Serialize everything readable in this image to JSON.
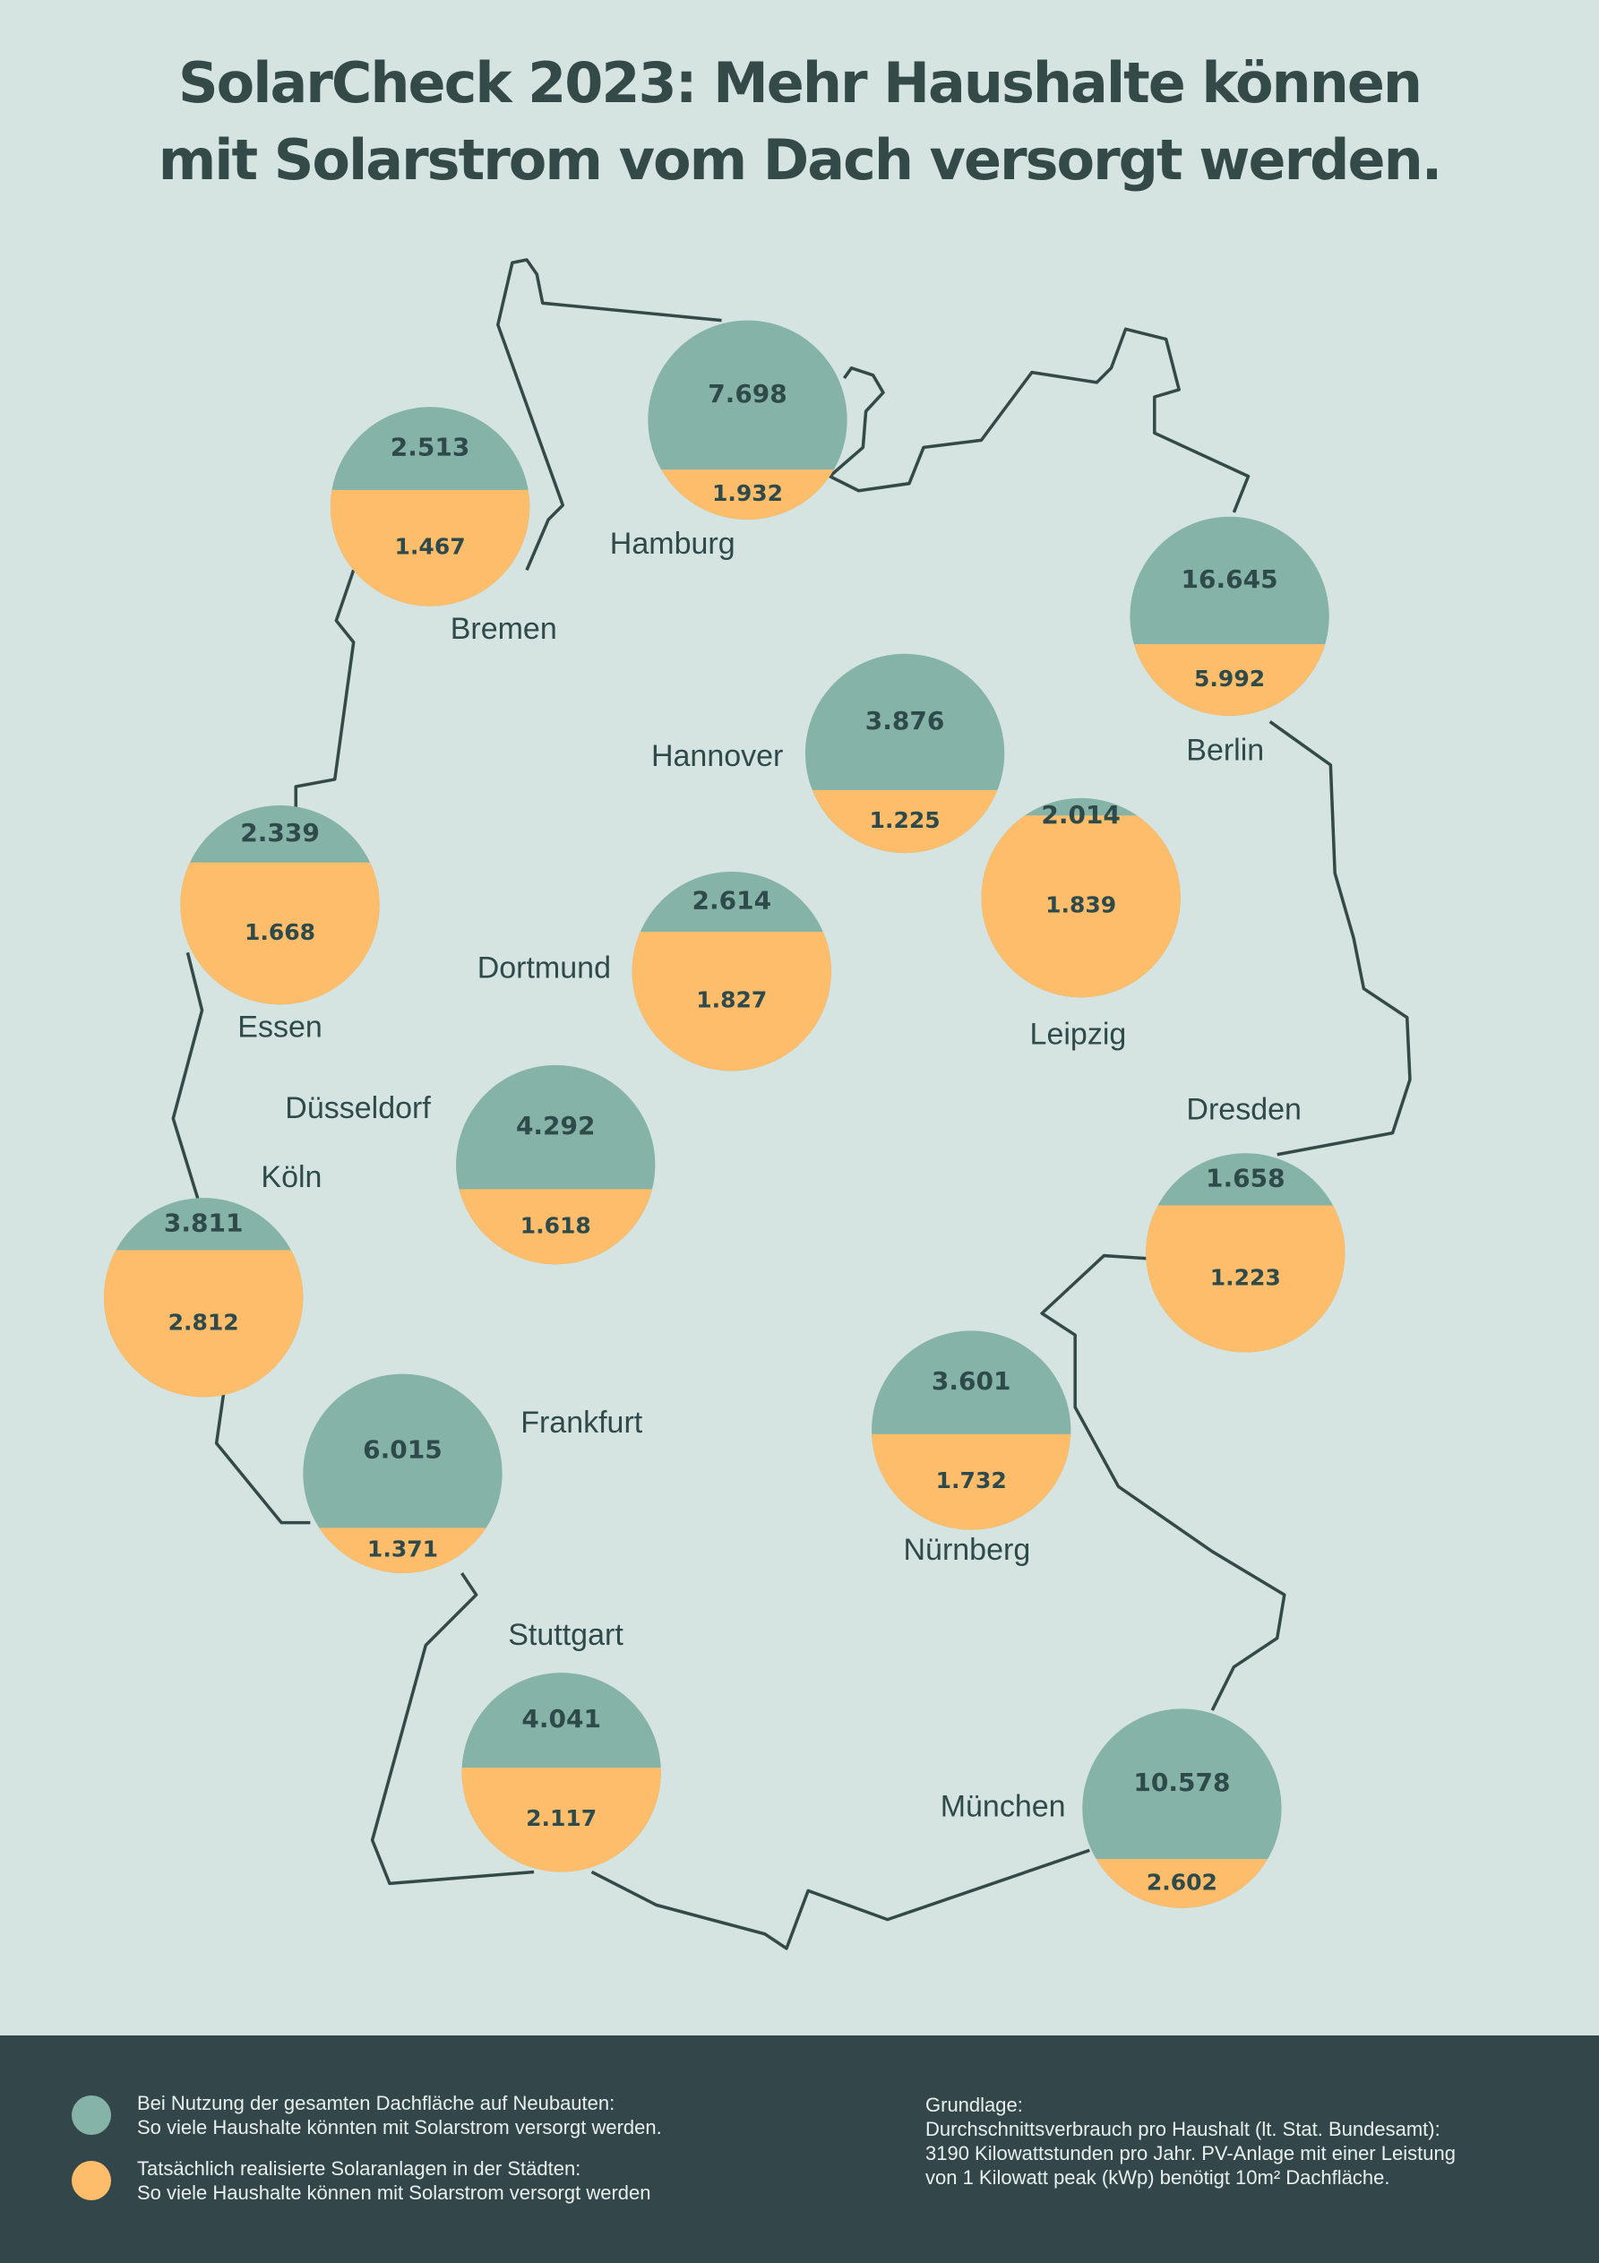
{
  "chart_data": {
    "type": "map",
    "title": "SolarCheck 2023: Mehr Haushalte können\nmit Solarstrom vom Dach versorgt werden.",
    "categories": [
      "Hamburg",
      "Bremen",
      "Berlin",
      "Hannover",
      "Leipzig",
      "Essen",
      "Dortmund",
      "Düsseldorf",
      "Köln",
      "Dresden",
      "Frankfurt",
      "Nürnberg",
      "Stuttgart",
      "München"
    ],
    "series": [
      {
        "name": "Bei Nutzung der gesamten Dachfläche auf Neubauten:\nSo viele Haushalte könnten mit Solarstrom versorgt werden.",
        "color": "#86b3a7",
        "values": [
          7698,
          2513,
          16645,
          3876,
          2014,
          2339,
          2614,
          4292,
          3811,
          1658,
          6015,
          3601,
          4041,
          10578
        ],
        "value_labels": [
          "7.698",
          "2.513",
          "16.645",
          "3.876",
          "2.014",
          "2.339",
          "2.614",
          "4.292",
          "3.811",
          "1.658",
          "6.015",
          "3.601",
          "4.041",
          "10.578"
        ]
      },
      {
        "name": "Tatsächlich realisierte Solaranlagen in der Städten:\nSo viele Haushalte können mit Solarstrom versorgt werden",
        "color": "#fdbd6a",
        "values": [
          1932,
          1467,
          5992,
          1225,
          1839,
          1668,
          1827,
          1618,
          2812,
          1223,
          1371,
          1732,
          2117,
          2602
        ],
        "value_labels": [
          "1.932",
          "1.467",
          "5.992",
          "1.225",
          "1.839",
          "1.668",
          "1.827",
          "1.618",
          "2.812",
          "1.223",
          "1.371",
          "1.732",
          "2.117",
          "2.602"
        ]
      }
    ],
    "note": "Grundlage:\nDurchschnittsverbrauch pro Haushalt (lt. Stat. Bundesamt):\n3190 Kilowattstunden pro Jahr. PV-Anlage mit einer Leistung\nvon 1 Kilowatt peak (kWp) benötigt 10m² Dachfläche."
  }
}
